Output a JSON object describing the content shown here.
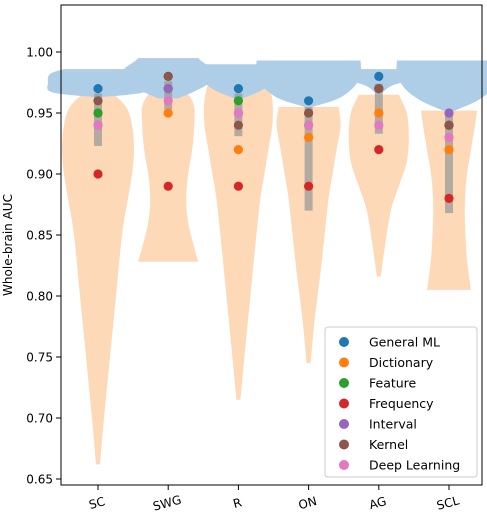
{
  "chart_data": {
    "type": "violin",
    "title": "",
    "xlabel": "",
    "ylabel": "Whole-brain AUC",
    "ylim": [
      0.65,
      1.0
    ],
    "yticks": [
      "0.65",
      "0.70",
      "0.75",
      "0.80",
      "0.85",
      "0.90",
      "0.95",
      "1.00"
    ],
    "categories": [
      "SC",
      "SWG",
      "R",
      "ON",
      "AG",
      "SCL"
    ],
    "violin_colors": {
      "blue": "#aecde6",
      "orange": "#fdd9b8",
      "box": "#9a9a9a"
    },
    "violins": [
      {
        "category": "SC",
        "orange": {
          "min": 0.662,
          "max": 0.968,
          "shape": [
            [
              0.662,
              0.002
            ],
            [
              0.7,
              0.006
            ],
            [
              0.75,
              0.012
            ],
            [
              0.8,
              0.018
            ],
            [
              0.85,
              0.024
            ],
            [
              0.88,
              0.03
            ],
            [
              0.9,
              0.034
            ],
            [
              0.92,
              0.036
            ],
            [
              0.94,
              0.034
            ],
            [
              0.955,
              0.028
            ],
            [
              0.968,
              0.012
            ]
          ]
        },
        "blue": {
          "min": 0.963,
          "max": 0.986,
          "shape": [
            [
              0.963,
              0.004
            ],
            [
              0.967,
              0.046
            ],
            [
              0.975,
              0.05
            ],
            [
              0.982,
              0.048
            ],
            [
              0.986,
              0.034
            ]
          ]
        },
        "box": {
          "q1": 0.923,
          "q3": 0.966
        }
      },
      {
        "category": "SWG",
        "orange": {
          "min": 0.828,
          "max": 0.973,
          "shape": [
            [
              0.828,
              0.03
            ],
            [
              0.84,
              0.026
            ],
            [
              0.86,
              0.02
            ],
            [
              0.88,
              0.018
            ],
            [
              0.9,
              0.02
            ],
            [
              0.92,
              0.024
            ],
            [
              0.94,
              0.026
            ],
            [
              0.955,
              0.026
            ],
            [
              0.965,
              0.02
            ],
            [
              0.973,
              0.008
            ]
          ]
        },
        "blue": {
          "min": 0.962,
          "max": 0.995,
          "shape": [
            [
              0.962,
              0.01
            ],
            [
              0.97,
              0.032
            ],
            [
              0.978,
              0.046
            ],
            [
              0.986,
              0.044
            ],
            [
              0.992,
              0.034
            ],
            [
              0.995,
              0.03
            ]
          ]
        },
        "box": {
          "q1": 0.953,
          "q3": 0.976
        }
      },
      {
        "category": "R",
        "orange": {
          "min": 0.715,
          "max": 0.975,
          "shape": [
            [
              0.715,
              0.002
            ],
            [
              0.75,
              0.006
            ],
            [
              0.8,
              0.012
            ],
            [
              0.85,
              0.018
            ],
            [
              0.88,
              0.022
            ],
            [
              0.9,
              0.026
            ],
            [
              0.92,
              0.03
            ],
            [
              0.94,
              0.034
            ],
            [
              0.96,
              0.034
            ],
            [
              0.975,
              0.03
            ]
          ]
        },
        "blue": {
          "min": 0.962,
          "max": 0.99,
          "shape": [
            [
              0.962,
              0.004
            ],
            [
              0.968,
              0.022
            ],
            [
              0.975,
              0.034
            ],
            [
              0.982,
              0.036
            ],
            [
              0.99,
              0.036
            ]
          ]
        },
        "box": {
          "q1": 0.931,
          "q3": 0.966
        }
      },
      {
        "category": "ON",
        "orange": {
          "min": 0.745,
          "max": 0.955,
          "shape": [
            [
              0.745,
              0.002
            ],
            [
              0.78,
              0.006
            ],
            [
              0.82,
              0.012
            ],
            [
              0.85,
              0.016
            ],
            [
              0.88,
              0.02
            ],
            [
              0.9,
              0.024
            ],
            [
              0.92,
              0.028
            ],
            [
              0.94,
              0.032
            ],
            [
              0.955,
              0.03
            ]
          ]
        },
        "blue": {
          "min": 0.955,
          "max": 0.993,
          "shape": [
            [
              0.955,
              0.004
            ],
            [
              0.962,
              0.03
            ],
            [
              0.972,
              0.046
            ],
            [
              0.982,
              0.052
            ],
            [
              0.993,
              0.052
            ]
          ]
        },
        "box": {
          "q1": 0.87,
          "q3": 0.955
        }
      },
      {
        "category": "AG",
        "orange": {
          "min": 0.816,
          "max": 0.965,
          "shape": [
            [
              0.816,
              0.002
            ],
            [
              0.84,
              0.006
            ],
            [
              0.87,
              0.012
            ],
            [
              0.89,
              0.02
            ],
            [
              0.91,
              0.028
            ],
            [
              0.93,
              0.03
            ],
            [
              0.95,
              0.028
            ],
            [
              0.965,
              0.02
            ]
          ]
        },
        "blue": {
          "min": 0.967,
          "max": 0.986,
          "shape": [
            [
              0.967,
              0.004
            ],
            [
              0.972,
              0.012
            ],
            [
              0.976,
              0.026
            ],
            [
              0.982,
              0.038
            ],
            [
              0.986,
              0.028
            ]
          ]
        },
        "box": {
          "q1": 0.933,
          "q3": 0.974
        }
      },
      {
        "category": "SCL",
        "orange": {
          "min": 0.805,
          "max": 0.952,
          "shape": [
            [
              0.805,
              0.022
            ],
            [
              0.83,
              0.018
            ],
            [
              0.86,
              0.016
            ],
            [
              0.88,
              0.016
            ],
            [
              0.9,
              0.018
            ],
            [
              0.92,
              0.022
            ],
            [
              0.94,
              0.026
            ],
            [
              0.952,
              0.028
            ]
          ]
        },
        "blue": {
          "min": 0.952,
          "max": 0.993,
          "shape": [
            [
              0.952,
              0.006
            ],
            [
              0.96,
              0.028
            ],
            [
              0.97,
              0.044
            ],
            [
              0.982,
              0.052
            ],
            [
              0.993,
              0.052
            ]
          ]
        },
        "box": {
          "q1": 0.868,
          "q3": 0.952
        }
      }
    ],
    "series": [
      {
        "name": "General ML",
        "color": "#1f77b4",
        "values": [
          0.97,
          0.98,
          0.97,
          0.96,
          0.98,
          0.94
        ]
      },
      {
        "name": "Dictionary",
        "color": "#ff7f0e",
        "values": [
          0.95,
          0.95,
          0.92,
          0.93,
          0.95,
          0.92
        ]
      },
      {
        "name": "Feature",
        "color": "#2ca02c",
        "values": [
          0.95,
          0.97,
          0.96,
          0.94,
          0.97,
          0.94
        ]
      },
      {
        "name": "Frequency",
        "color": "#d62728",
        "values": [
          0.9,
          0.89,
          0.89,
          0.89,
          0.92,
          0.88
        ]
      },
      {
        "name": "Interval",
        "color": "#9467bd",
        "values": [
          0.94,
          0.97,
          0.95,
          0.95,
          0.97,
          0.95
        ]
      },
      {
        "name": "Kernel",
        "color": "#8c564b",
        "values": [
          0.96,
          0.98,
          0.94,
          0.95,
          0.97,
          0.94
        ]
      },
      {
        "name": "Deep Learning",
        "color": "#e377c2",
        "values": [
          0.94,
          0.96,
          0.95,
          0.94,
          0.94,
          0.93
        ]
      }
    ],
    "legend": {
      "position": "lower right"
    },
    "grid": false
  }
}
